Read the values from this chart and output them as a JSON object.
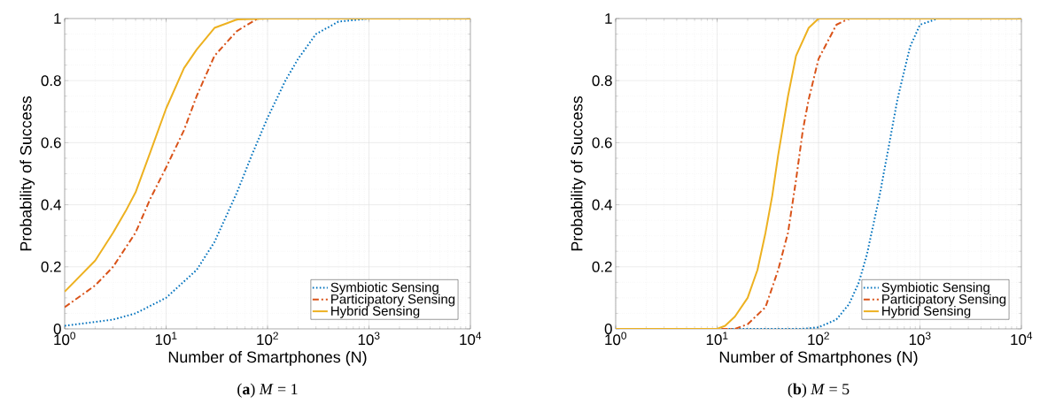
{
  "chart_data": [
    {
      "type": "line",
      "xlabel": "Number of Smartphones (N)",
      "ylabel": "Probability of Success",
      "log": "x",
      "grid": true,
      "legend": "bottom right",
      "xlim": [
        1,
        10000
      ],
      "ylim": [
        0,
        1
      ],
      "xticks": [
        {
          "value": 1,
          "label": "10$^{0}$"
        },
        {
          "value": 10,
          "label": "10$^{1}$"
        },
        {
          "value": 100,
          "label": "10$^{2}$"
        },
        {
          "value": 1000,
          "label": "10$^{3}$"
        },
        {
          "value": 10000,
          "label": "10$^{4}$"
        }
      ],
      "yticks": [
        0,
        0.2,
        0.4,
        0.6,
        0.8,
        1
      ],
      "annotations": [
        "(**a**) *M* = 1"
      ],
      "series": [
        {
          "name": "Symbiotic Sensing",
          "color": "#0072bd",
          "line_style": "dotted",
          "x": [
            1,
            3,
            5,
            10,
            20,
            30,
            50,
            70,
            100,
            150,
            200,
            300,
            500,
            1000
          ],
          "values": [
            0.01,
            0.03,
            0.05,
            0.1,
            0.19,
            0.28,
            0.44,
            0.56,
            0.68,
            0.8,
            0.87,
            0.95,
            0.99,
            1
          ]
        },
        {
          "name": "Participatory Sensing",
          "color": "#d95319",
          "line_style": "dashed",
          "x": [
            1,
            2,
            3,
            5,
            7,
            10,
            15,
            20,
            30,
            50,
            80,
            10000
          ],
          "values": [
            0.07,
            0.14,
            0.2,
            0.31,
            0.42,
            0.52,
            0.64,
            0.75,
            0.88,
            0.96,
            1,
            1
          ]
        },
        {
          "name": "Hybrid Sensing",
          "color": "#edb120",
          "line_style": "solid",
          "x": [
            1,
            2,
            3,
            4,
            5,
            7,
            10,
            15,
            20,
            30,
            50,
            100,
            10000
          ],
          "values": [
            0.12,
            0.22,
            0.31,
            0.38,
            0.44,
            0.57,
            0.71,
            0.84,
            0.9,
            0.97,
            0.997,
            1,
            1
          ]
        }
      ]
    },
    {
      "type": "line",
      "xlabel": "Number of Smartphones (N)",
      "ylabel": "Probability of Success",
      "log": "x",
      "grid": true,
      "legend": "bottom right",
      "xlim": [
        1,
        10000
      ],
      "ylim": [
        0,
        1
      ],
      "xticks": [
        {
          "value": 1,
          "label": "10$^{0}$"
        },
        {
          "value": 10,
          "label": "10$^{1}$"
        },
        {
          "value": 100,
          "label": "10$^{2}$"
        },
        {
          "value": 1000,
          "label": "10$^{3}$"
        },
        {
          "value": 10000,
          "label": "10$^{4}$"
        }
      ],
      "yticks": [
        0,
        0.2,
        0.4,
        0.6,
        0.8,
        1
      ],
      "annotations": [
        "(**b**) *M* = 5"
      ],
      "series": [
        {
          "name": "Symbiotic Sensing",
          "color": "#0072bd",
          "line_style": "dotted",
          "x": [
            1,
            70,
            100,
            150,
            200,
            250,
            300,
            400,
            500,
            600,
            800,
            1000,
            1500
          ],
          "values": [
            0,
            0,
            0.005,
            0.03,
            0.08,
            0.15,
            0.24,
            0.43,
            0.6,
            0.74,
            0.91,
            0.98,
            1
          ]
        },
        {
          "name": "Participatory Sensing",
          "color": "#d95319",
          "line_style": "dashed",
          "x": [
            1,
            15,
            20,
            30,
            40,
            50,
            60,
            70,
            80,
            100,
            150,
            200,
            10000
          ],
          "values": [
            0,
            0,
            0.015,
            0.07,
            0.19,
            0.31,
            0.48,
            0.64,
            0.74,
            0.87,
            0.98,
            1,
            1
          ]
        },
        {
          "name": "Hybrid Sensing",
          "color": "#edb120",
          "line_style": "solid",
          "x": [
            1,
            10,
            12,
            15,
            20,
            25,
            30,
            35,
            40,
            50,
            60,
            80,
            100,
            10000
          ],
          "values": [
            0,
            0,
            0.01,
            0.04,
            0.1,
            0.19,
            0.31,
            0.43,
            0.56,
            0.75,
            0.88,
            0.97,
            1,
            1
          ]
        }
      ]
    }
  ]
}
